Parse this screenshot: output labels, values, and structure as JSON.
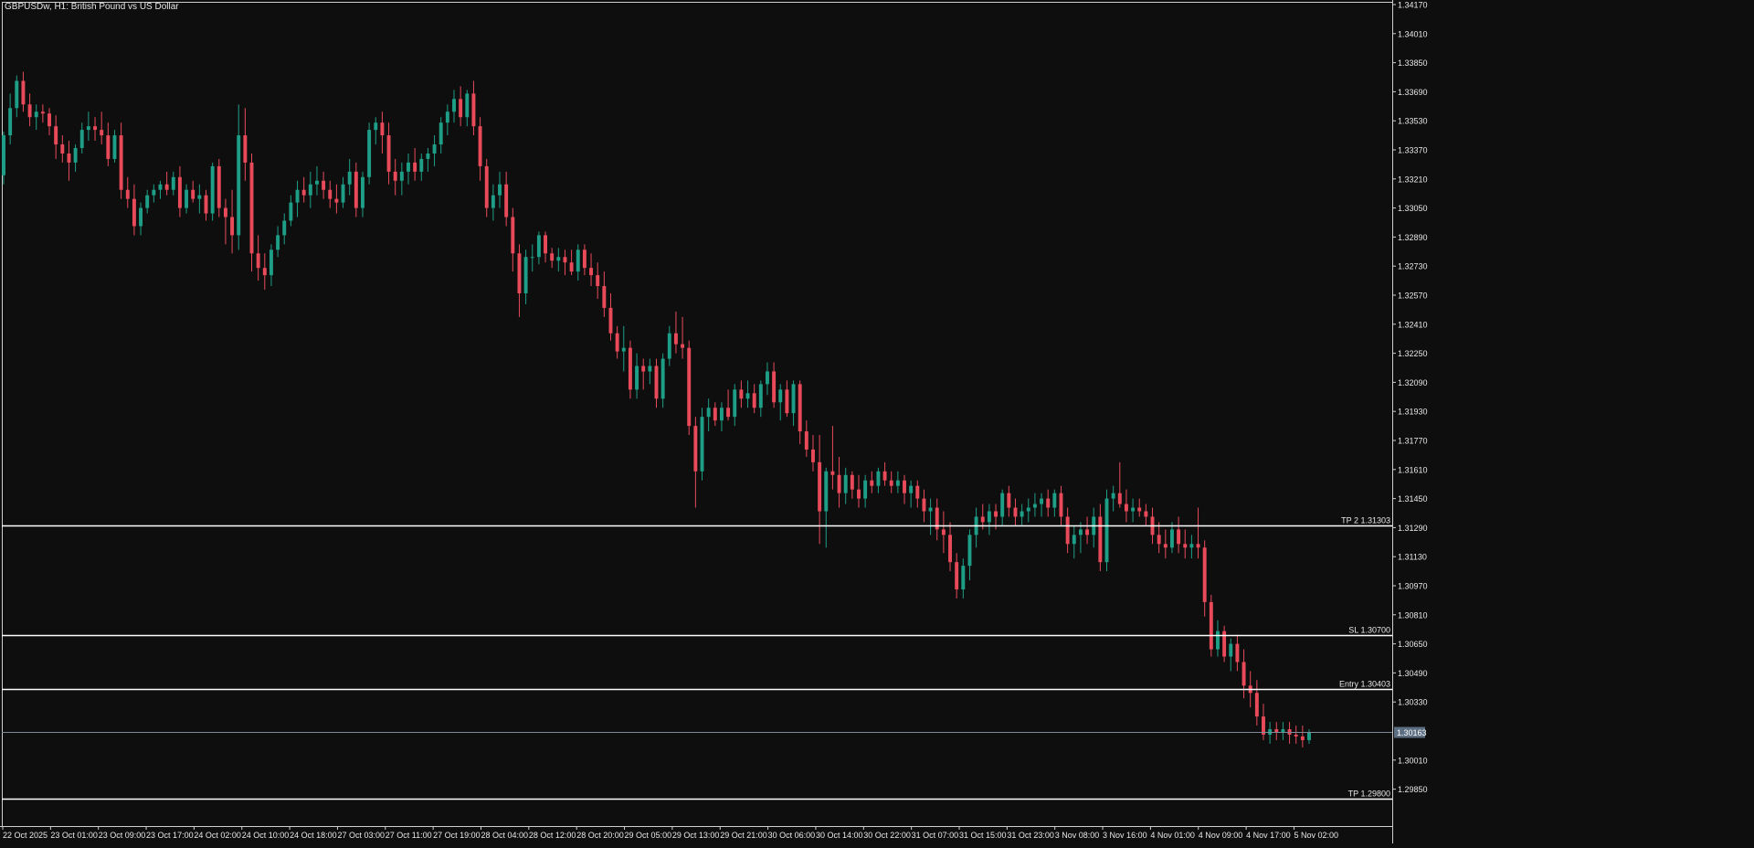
{
  "window": {
    "symbol": "GBPUSDw",
    "timeframe": "H1",
    "title": "GBPUSDw, H1:  British Pound vs US Dollar"
  },
  "colors": {
    "background": "#0e0e0e",
    "frame": "#cfcfcf",
    "text": "#e8e8e8",
    "bull": "#1e9e86",
    "bear": "#e84a5a",
    "level_line": "#ffffff",
    "bid_line": "#7d8a99",
    "bid_label_bg": "#5c6e82"
  },
  "chart_data": {
    "type": "candlestick",
    "title": "GBPUSDw, H1:  British Pound vs US Dollar",
    "y_axis": {
      "range": [
        1.2975,
        1.3419
      ],
      "tick_labels": [
        "1.34170",
        "1.34010",
        "1.33850",
        "1.33690",
        "1.33530",
        "1.33370",
        "1.33210",
        "1.33050",
        "1.32890",
        "1.32730",
        "1.32570",
        "1.32410",
        "1.32250",
        "1.32090",
        "1.31930",
        "1.31770",
        "1.31610",
        "1.31450",
        "1.31290",
        "1.31130",
        "1.30970",
        "1.30810",
        "1.30650",
        "1.30490",
        "1.30330",
        "1.30010",
        "1.29850"
      ]
    },
    "x_axis": {
      "tick_labels": [
        "22 Oct 2025",
        "23 Oct 01:00",
        "23 Oct 09:00",
        "23 Oct 17:00",
        "24 Oct 02:00",
        "24 Oct 10:00",
        "24 Oct 18:00",
        "27 Oct 03:00",
        "27 Oct 11:00",
        "27 Oct 19:00",
        "28 Oct 04:00",
        "28 Oct 12:00",
        "28 Oct 20:00",
        "29 Oct 05:00",
        "29 Oct 13:00",
        "29 Oct 21:00",
        "30 Oct 06:00",
        "30 Oct 14:00",
        "30 Oct 22:00",
        "31 Oct 07:00",
        "31 Oct 15:00",
        "31 Oct 23:00",
        "3 Nov 08:00",
        "3 Nov 16:00",
        "4 Nov 01:00",
        "4 Nov 09:00",
        "4 Nov 17:00",
        "5 Nov 02:00"
      ]
    },
    "levels": [
      {
        "label": "TP 2 1.31303",
        "price": 1.31303
      },
      {
        "label": "SL 1.30700",
        "price": 1.307
      },
      {
        "label": "Entry 1.30403",
        "price": 1.30403
      },
      {
        "label": "TP 1.29800",
        "price": 1.298
      }
    ],
    "bid": {
      "label": "1.30163",
      "price": 1.30163
    },
    "candles": [
      [
        1.3323,
        1.3347,
        1.3318,
        1.3345
      ],
      [
        1.3345,
        1.3368,
        1.334,
        1.336
      ],
      [
        1.336,
        1.3378,
        1.3355,
        1.3375
      ],
      [
        1.3375,
        1.338,
        1.3358,
        1.3362
      ],
      [
        1.3362,
        1.3368,
        1.335,
        1.3355
      ],
      [
        1.3355,
        1.3362,
        1.3348,
        1.3358
      ],
      [
        1.3358,
        1.3362,
        1.3352,
        1.3357
      ],
      [
        1.3357,
        1.336,
        1.3345,
        1.335
      ],
      [
        1.335,
        1.3356,
        1.3332,
        1.334
      ],
      [
        1.334,
        1.3345,
        1.333,
        1.3335
      ],
      [
        1.3335,
        1.3342,
        1.332,
        1.333
      ],
      [
        1.333,
        1.334,
        1.3325,
        1.3338
      ],
      [
        1.3338,
        1.3352,
        1.3335,
        1.3348
      ],
      [
        1.3348,
        1.3358,
        1.3342,
        1.335
      ],
      [
        1.335,
        1.3355,
        1.3342,
        1.3348
      ],
      [
        1.3348,
        1.3358,
        1.334,
        1.3345
      ],
      [
        1.3345,
        1.3352,
        1.3328,
        1.3332
      ],
      [
        1.3332,
        1.3348,
        1.333,
        1.3345
      ],
      [
        1.3345,
        1.3352,
        1.331,
        1.3315
      ],
      [
        1.3315,
        1.3322,
        1.3305,
        1.331
      ],
      [
        1.331,
        1.3318,
        1.329,
        1.3295
      ],
      [
        1.3295,
        1.3308,
        1.329,
        1.3305
      ],
      [
        1.3305,
        1.3315,
        1.3302,
        1.3312
      ],
      [
        1.3312,
        1.3318,
        1.3308,
        1.3315
      ],
      [
        1.3315,
        1.332,
        1.331,
        1.3318
      ],
      [
        1.3318,
        1.3325,
        1.3312,
        1.3315
      ],
      [
        1.3315,
        1.3325,
        1.3312,
        1.3322
      ],
      [
        1.3322,
        1.3328,
        1.33,
        1.3305
      ],
      [
        1.3305,
        1.3318,
        1.3302,
        1.3315
      ],
      [
        1.3315,
        1.332,
        1.3308,
        1.331
      ],
      [
        1.331,
        1.3318,
        1.3302,
        1.3312
      ],
      [
        1.3312,
        1.3315,
        1.3298,
        1.3302
      ],
      [
        1.3302,
        1.333,
        1.3298,
        1.3328
      ],
      [
        1.3328,
        1.3332,
        1.33,
        1.3305
      ],
      [
        1.3305,
        1.331,
        1.3285,
        1.33
      ],
      [
        1.33,
        1.3315,
        1.328,
        1.329
      ],
      [
        1.329,
        1.3362,
        1.3282,
        1.3345
      ],
      [
        1.3345,
        1.336,
        1.332,
        1.333
      ],
      [
        1.333,
        1.3335,
        1.327,
        1.328
      ],
      [
        1.328,
        1.329,
        1.3265,
        1.3272
      ],
      [
        1.3272,
        1.328,
        1.326,
        1.3268
      ],
      [
        1.3268,
        1.3285,
        1.3262,
        1.3282
      ],
      [
        1.3282,
        1.3295,
        1.3278,
        1.329
      ],
      [
        1.329,
        1.3302,
        1.3285,
        1.3298
      ],
      [
        1.3298,
        1.3312,
        1.3295,
        1.3308
      ],
      [
        1.3308,
        1.332,
        1.33,
        1.3315
      ],
      [
        1.3315,
        1.3322,
        1.3308,
        1.3312
      ],
      [
        1.3312,
        1.3325,
        1.3305,
        1.3318
      ],
      [
        1.3318,
        1.3328,
        1.3312,
        1.332
      ],
      [
        1.332,
        1.3325,
        1.331,
        1.3315
      ],
      [
        1.3315,
        1.332,
        1.3305,
        1.331
      ],
      [
        1.331,
        1.3318,
        1.3302,
        1.3308
      ],
      [
        1.3308,
        1.3322,
        1.3305,
        1.3318
      ],
      [
        1.3318,
        1.3332,
        1.3312,
        1.3325
      ],
      [
        1.3325,
        1.333,
        1.33,
        1.3305
      ],
      [
        1.3305,
        1.3325,
        1.33,
        1.3322
      ],
      [
        1.3322,
        1.3352,
        1.3318,
        1.3348
      ],
      [
        1.3348,
        1.3355,
        1.334,
        1.3352
      ],
      [
        1.3352,
        1.3358,
        1.3335,
        1.3345
      ],
      [
        1.3345,
        1.3352,
        1.3318,
        1.3325
      ],
      [
        1.3325,
        1.3332,
        1.3312,
        1.332
      ],
      [
        1.332,
        1.333,
        1.3312,
        1.3325
      ],
      [
        1.3325,
        1.3335,
        1.3318,
        1.333
      ],
      [
        1.333,
        1.3338,
        1.332,
        1.3325
      ],
      [
        1.3325,
        1.3335,
        1.332,
        1.3332
      ],
      [
        1.3332,
        1.3338,
        1.3325,
        1.3335
      ],
      [
        1.3335,
        1.3345,
        1.3328,
        1.334
      ],
      [
        1.334,
        1.3355,
        1.3335,
        1.3352
      ],
      [
        1.3352,
        1.3362,
        1.3345,
        1.3358
      ],
      [
        1.3358,
        1.337,
        1.3352,
        1.3365
      ],
      [
        1.3365,
        1.3372,
        1.335,
        1.3355
      ],
      [
        1.3355,
        1.337,
        1.335,
        1.3368
      ],
      [
        1.3368,
        1.3375,
        1.3345,
        1.335
      ],
      [
        1.335,
        1.3355,
        1.332,
        1.3328
      ],
      [
        1.3328,
        1.3332,
        1.33,
        1.3305
      ],
      [
        1.3305,
        1.3318,
        1.3298,
        1.3312
      ],
      [
        1.3312,
        1.3325,
        1.3305,
        1.3318
      ],
      [
        1.3318,
        1.3325,
        1.3295,
        1.33
      ],
      [
        1.33,
        1.3305,
        1.327,
        1.328
      ],
      [
        1.328,
        1.3285,
        1.3245,
        1.3258
      ],
      [
        1.3258,
        1.3282,
        1.3252,
        1.3278
      ],
      [
        1.3278,
        1.3285,
        1.327,
        1.3278
      ],
      [
        1.3278,
        1.3292,
        1.3274,
        1.329
      ],
      [
        1.329,
        1.3292,
        1.3275,
        1.328
      ],
      [
        1.328,
        1.3283,
        1.3272,
        1.3276
      ],
      [
        1.3276,
        1.3283,
        1.327,
        1.3278
      ],
      [
        1.3278,
        1.3282,
        1.3268,
        1.3275
      ],
      [
        1.3275,
        1.3282,
        1.3268,
        1.327
      ],
      [
        1.327,
        1.3285,
        1.3265,
        1.3282
      ],
      [
        1.3282,
        1.3285,
        1.3268,
        1.3272
      ],
      [
        1.3272,
        1.328,
        1.3262,
        1.3268
      ],
      [
        1.3268,
        1.3275,
        1.3255,
        1.3262
      ],
      [
        1.3262,
        1.327,
        1.3245,
        1.325
      ],
      [
        1.325,
        1.3258,
        1.3232,
        1.3236
      ],
      [
        1.3236,
        1.324,
        1.3222,
        1.3226
      ],
      [
        1.3226,
        1.324,
        1.3215,
        1.3228
      ],
      [
        1.3228,
        1.3232,
        1.32,
        1.3205
      ],
      [
        1.3205,
        1.3225,
        1.32,
        1.3218
      ],
      [
        1.3218,
        1.3222,
        1.3205,
        1.3215
      ],
      [
        1.3215,
        1.3222,
        1.3208,
        1.3218
      ],
      [
        1.3218,
        1.3222,
        1.3195,
        1.32
      ],
      [
        1.32,
        1.3225,
        1.3195,
        1.3222
      ],
      [
        1.3222,
        1.324,
        1.3218,
        1.3236
      ],
      [
        1.3236,
        1.3248,
        1.3225,
        1.323
      ],
      [
        1.323,
        1.3245,
        1.3222,
        1.3228
      ],
      [
        1.3228,
        1.3232,
        1.318,
        1.3185
      ],
      [
        1.3185,
        1.319,
        1.314,
        1.316
      ],
      [
        1.316,
        1.3195,
        1.3155,
        1.319
      ],
      [
        1.319,
        1.32,
        1.3182,
        1.3195
      ],
      [
        1.3195,
        1.3198,
        1.3185,
        1.3188
      ],
      [
        1.3188,
        1.3198,
        1.3182,
        1.3195
      ],
      [
        1.3195,
        1.3205,
        1.3188,
        1.319
      ],
      [
        1.319,
        1.3208,
        1.3185,
        1.3205
      ],
      [
        1.3205,
        1.321,
        1.3195,
        1.32
      ],
      [
        1.32,
        1.321,
        1.3195,
        1.3203
      ],
      [
        1.3203,
        1.3208,
        1.3192,
        1.3195
      ],
      [
        1.3195,
        1.321,
        1.319,
        1.3208
      ],
      [
        1.3208,
        1.322,
        1.3202,
        1.3215
      ],
      [
        1.3215,
        1.322,
        1.3195,
        1.3198
      ],
      [
        1.3198,
        1.3208,
        1.3188,
        1.3205
      ],
      [
        1.3205,
        1.321,
        1.319,
        1.3192
      ],
      [
        1.3192,
        1.321,
        1.3185,
        1.3208
      ],
      [
        1.3208,
        1.321,
        1.3175,
        1.3182
      ],
      [
        1.3182,
        1.3188,
        1.3168,
        1.3172
      ],
      [
        1.3172,
        1.318,
        1.316,
        1.3165
      ],
      [
        1.3165,
        1.318,
        1.312,
        1.3138
      ],
      [
        1.3138,
        1.3162,
        1.3118,
        1.316
      ],
      [
        1.316,
        1.3185,
        1.315,
        1.3158
      ],
      [
        1.3158,
        1.3168,
        1.314,
        1.3148
      ],
      [
        1.3148,
        1.3162,
        1.3142,
        1.3158
      ],
      [
        1.3158,
        1.316,
        1.3145,
        1.315
      ],
      [
        1.315,
        1.3158,
        1.314,
        1.3145
      ],
      [
        1.3145,
        1.3158,
        1.314,
        1.3155
      ],
      [
        1.3155,
        1.316,
        1.3148,
        1.3152
      ],
      [
        1.3152,
        1.3162,
        1.3148,
        1.316
      ],
      [
        1.316,
        1.3165,
        1.3152,
        1.3155
      ],
      [
        1.3155,
        1.316,
        1.3148,
        1.3152
      ],
      [
        1.3152,
        1.316,
        1.3148,
        1.3155
      ],
      [
        1.3155,
        1.3158,
        1.3142,
        1.3148
      ],
      [
        1.3148,
        1.3155,
        1.314,
        1.3152
      ],
      [
        1.3152,
        1.3155,
        1.314,
        1.3145
      ],
      [
        1.3145,
        1.315,
        1.3132,
        1.3138
      ],
      [
        1.3138,
        1.3145,
        1.3125,
        1.314
      ],
      [
        1.314,
        1.3145,
        1.3122,
        1.3128
      ],
      [
        1.3128,
        1.3138,
        1.3115,
        1.3125
      ],
      [
        1.3125,
        1.3132,
        1.3105,
        1.311
      ],
      [
        1.311,
        1.3115,
        1.309,
        1.3095
      ],
      [
        1.3095,
        1.3112,
        1.309,
        1.3108
      ],
      [
        1.3108,
        1.3128,
        1.31,
        1.3125
      ],
      [
        1.3125,
        1.314,
        1.3118,
        1.3135
      ],
      [
        1.3135,
        1.3142,
        1.3128,
        1.3132
      ],
      [
        1.3132,
        1.3142,
        1.3125,
        1.3138
      ],
      [
        1.3138,
        1.3142,
        1.3128,
        1.3135
      ],
      [
        1.3135,
        1.315,
        1.313,
        1.3148
      ],
      [
        1.3148,
        1.3152,
        1.3135,
        1.314
      ],
      [
        1.314,
        1.3145,
        1.313,
        1.3135
      ],
      [
        1.3135,
        1.3142,
        1.313,
        1.3138
      ],
      [
        1.3138,
        1.3145,
        1.3132,
        1.314
      ],
      [
        1.314,
        1.3148,
        1.3135,
        1.3142
      ],
      [
        1.3142,
        1.3148,
        1.3135,
        1.3145
      ],
      [
        1.3145,
        1.315,
        1.3135,
        1.314
      ],
      [
        1.314,
        1.315,
        1.3135,
        1.3148
      ],
      [
        1.3148,
        1.3152,
        1.313,
        1.3135
      ],
      [
        1.3135,
        1.314,
        1.3115,
        1.312
      ],
      [
        1.312,
        1.313,
        1.3112,
        1.3125
      ],
      [
        1.3125,
        1.3132,
        1.3115,
        1.3128
      ],
      [
        1.3128,
        1.3135,
        1.312,
        1.3125
      ],
      [
        1.3125,
        1.314,
        1.3118,
        1.3135
      ],
      [
        1.3135,
        1.3142,
        1.3105,
        1.311
      ],
      [
        1.311,
        1.315,
        1.3105,
        1.3145
      ],
      [
        1.3145,
        1.3152,
        1.3138,
        1.3148
      ],
      [
        1.3148,
        1.3165,
        1.314,
        1.3142
      ],
      [
        1.3142,
        1.315,
        1.3132,
        1.3138
      ],
      [
        1.3138,
        1.3145,
        1.3132,
        1.314
      ],
      [
        1.314,
        1.3145,
        1.3135,
        1.3138
      ],
      [
        1.3138,
        1.3142,
        1.313,
        1.3135
      ],
      [
        1.3135,
        1.314,
        1.312,
        1.3125
      ],
      [
        1.3125,
        1.3132,
        1.3115,
        1.312
      ],
      [
        1.312,
        1.3128,
        1.3112,
        1.3118
      ],
      [
        1.3118,
        1.3132,
        1.3115,
        1.3128
      ],
      [
        1.3128,
        1.3135,
        1.3115,
        1.312
      ],
      [
        1.312,
        1.3128,
        1.3112,
        1.3118
      ],
      [
        1.3118,
        1.3125,
        1.3112,
        1.312
      ],
      [
        1.312,
        1.314,
        1.3112,
        1.3118
      ],
      [
        1.3118,
        1.3122,
        1.308,
        1.3088
      ],
      [
        1.3088,
        1.3092,
        1.3058,
        1.3062
      ],
      [
        1.3062,
        1.3078,
        1.3058,
        1.3072
      ],
      [
        1.3072,
        1.3075,
        1.3055,
        1.3058
      ],
      [
        1.3058,
        1.3068,
        1.305,
        1.3065
      ],
      [
        1.3065,
        1.307,
        1.305,
        1.3055
      ],
      [
        1.3055,
        1.3062,
        1.3035,
        1.3042
      ],
      [
        1.3042,
        1.305,
        1.303,
        1.3038
      ],
      [
        1.3038,
        1.3045,
        1.302,
        1.3025
      ],
      [
        1.3025,
        1.3032,
        1.3012,
        1.3015
      ],
      [
        1.3015,
        1.3022,
        1.301,
        1.3018
      ],
      [
        1.3018,
        1.3022,
        1.3012,
        1.3016
      ],
      [
        1.3016,
        1.3022,
        1.3012,
        1.3018
      ],
      [
        1.3018,
        1.3022,
        1.301,
        1.3015
      ],
      [
        1.3015,
        1.302,
        1.301,
        1.3014
      ],
      [
        1.3014,
        1.302,
        1.3008,
        1.3012
      ],
      [
        1.3012,
        1.3018,
        1.301,
        1.3016
      ]
    ]
  }
}
